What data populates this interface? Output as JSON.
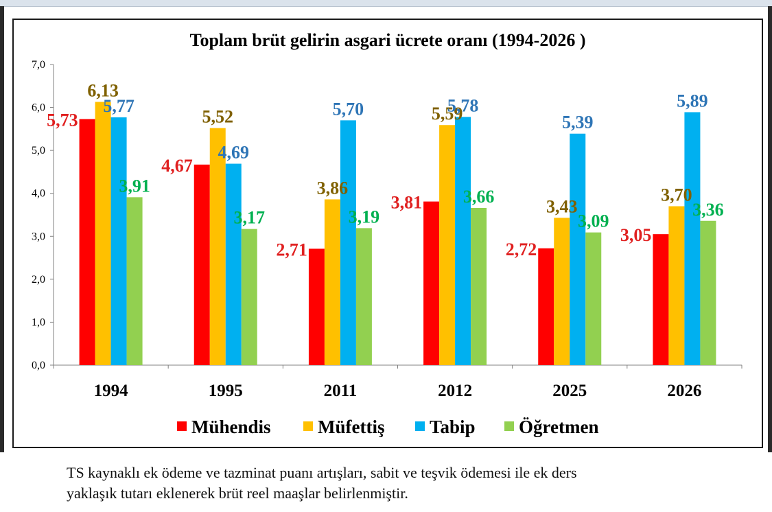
{
  "chart_data": {
    "type": "bar",
    "title": "Toplam brüt gelirin asgari ücrete oranı (1994-2026 )",
    "categories": [
      "1994",
      "1995",
      "2011",
      "2012",
      "2025",
      "2026"
    ],
    "ylim": [
      0,
      7
    ],
    "yticks": [
      "0,0",
      "1,0",
      "2,0",
      "3,0",
      "4,0",
      "5,0",
      "6,0",
      "7,0"
    ],
    "grid": false,
    "legend_position": "bottom",
    "series": [
      {
        "name": "Mühendis",
        "color": "#ff0000",
        "label_color": "#e02020",
        "values": [
          5.73,
          4.67,
          2.71,
          3.81,
          2.72,
          3.05
        ],
        "labels": [
          "5,73",
          "4,67",
          "2,71",
          "3,81",
          "2,72",
          "3,05"
        ]
      },
      {
        "name": "Müfettiş",
        "color": "#ffc000",
        "label_color": "#7f6000",
        "values": [
          6.13,
          5.52,
          3.86,
          5.59,
          3.43,
          3.7
        ],
        "labels": [
          "6,13",
          "5,52",
          "3,86",
          "5,59",
          "3,43",
          "3,70"
        ]
      },
      {
        "name": "Tabip",
        "color": "#00b0f0",
        "label_color": "#2e75b6",
        "values": [
          5.77,
          4.69,
          5.7,
          5.78,
          5.39,
          5.89
        ],
        "labels": [
          "5,77",
          "4,69",
          "5,70",
          "5,78",
          "5,39",
          "5,89"
        ]
      },
      {
        "name": "Öğretmen",
        "color": "#92d050",
        "label_color": "#00b050",
        "values": [
          3.91,
          3.17,
          3.19,
          3.66,
          3.09,
          3.36
        ],
        "labels": [
          "3,91",
          "3,17",
          "3,19",
          "3,66",
          "3,09",
          "3,36"
        ]
      }
    ]
  },
  "caption": {
    "line1": "TS kaynaklı ek ödeme ve tazminat puanı artışları, sabit ve teşvik ödemesi ile ek ders",
    "line2": "yaklaşık tutarı eklenerek brüt reel maaşlar belirlenmiştir."
  }
}
